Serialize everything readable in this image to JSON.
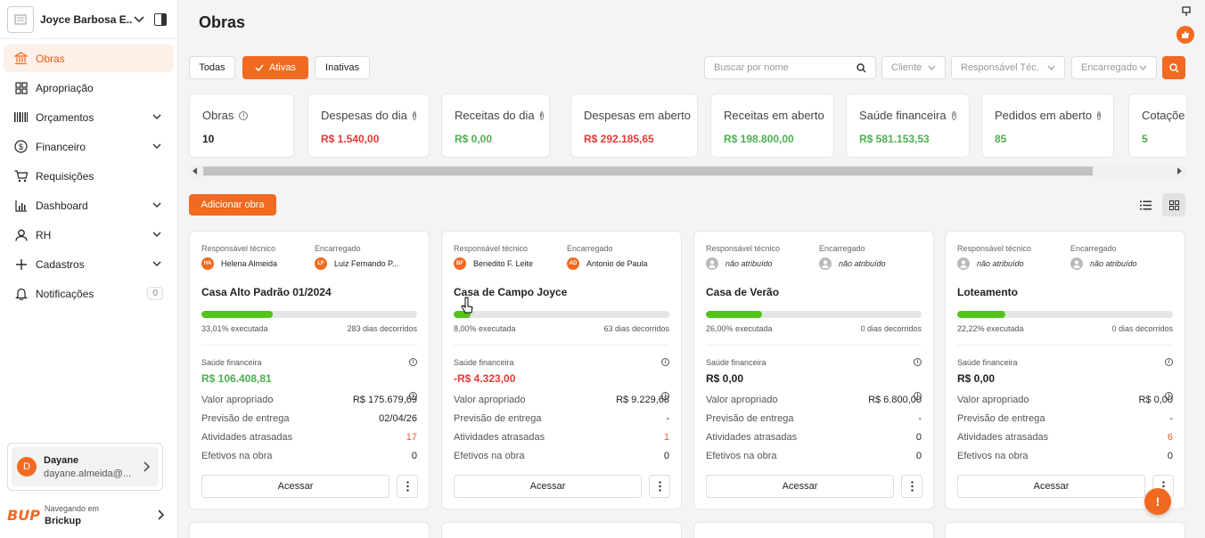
{
  "sidebar": {
    "company_name": "Joyce Barbosa E...",
    "items": [
      {
        "label": "Obras",
        "icon": "bank-icon",
        "active": true,
        "has_chevron": false
      },
      {
        "label": "Apropriação",
        "icon": "grid-icon",
        "active": false,
        "has_chevron": false
      },
      {
        "label": "Orçamentos",
        "icon": "barcode-icon",
        "active": false,
        "has_chevron": true
      },
      {
        "label": "Financeiro",
        "icon": "dollar-icon",
        "active": false,
        "has_chevron": true
      },
      {
        "label": "Requisições",
        "icon": "cart-icon",
        "active": false,
        "has_chevron": false
      },
      {
        "label": "Dashboard",
        "icon": "bar-chart-icon",
        "active": false,
        "has_chevron": true
      },
      {
        "label": "RH",
        "icon": "user-icon",
        "active": false,
        "has_chevron": true
      },
      {
        "label": "Cadastros",
        "icon": "plus-icon",
        "active": false,
        "has_chevron": true
      },
      {
        "label": "Notificações",
        "icon": "bell-icon",
        "active": false,
        "has_chevron": false,
        "badge": "0"
      }
    ],
    "user": {
      "initial": "D",
      "name": "Dayane",
      "email": "dayane.almeida@..."
    },
    "footer": {
      "logo_text": "BUP",
      "small": "Navegando em",
      "big": "Brickup"
    }
  },
  "header": {
    "title": "Obras"
  },
  "filters": {
    "segments": [
      "Todas",
      "Ativas",
      "Inativas"
    ],
    "active_segment": "Ativas",
    "search_placeholder": "Buscar por nome",
    "selects": [
      "Cliente",
      "Responsável Téc.",
      "Encarregado"
    ]
  },
  "stats": [
    {
      "label": "Obras",
      "value": "10",
      "tone": "dark",
      "info": true
    },
    {
      "label": "Despesas do dia",
      "value": "R$ 1.540,00",
      "tone": "red",
      "info": true
    },
    {
      "label": "Receitas do dia",
      "value": "R$ 0,00",
      "tone": "green",
      "info": true
    },
    {
      "label": "Despesas em aberto",
      "value": "R$ 292.185,65",
      "tone": "red",
      "info": false
    },
    {
      "label": "Receitas em aberto",
      "value": "R$ 198.800,00",
      "tone": "green",
      "info": false
    },
    {
      "label": "Saúde financeira",
      "value": "R$ 581.153,53",
      "tone": "green",
      "info": true
    },
    {
      "label": "Pedidos em aberto",
      "value": "85",
      "tone": "green",
      "info": true
    },
    {
      "label": "Cotações",
      "value": "5",
      "tone": "green",
      "info": false
    }
  ],
  "actions": {
    "add_label": "Adicionar obra"
  },
  "card_labels": {
    "resp": "Responsável técnico",
    "enc": "Encarregado",
    "saude": "Saúde financeira",
    "valor": "Valor apropriado",
    "previsao": "Previsão de entrega",
    "atividades": "Atividades atrasadas",
    "efetivos": "Efetivos na obra",
    "access": "Acessar"
  },
  "cards": [
    {
      "resp_initials": "HA",
      "resp_name": "Helena Almeida",
      "enc_initials": "LF",
      "enc_name": "Luiz Fernando P...",
      "title": "Casa Alto Padrão 01/2024",
      "progress": 0.3301,
      "executed": "33,01% executada",
      "days": "283 dias decorridos",
      "saude": "R$ 106.408,81",
      "saude_tone": "green",
      "valor": "R$ 175.679,69",
      "previsao": "02/04/26",
      "atividades": "17",
      "atividades_tone": "orange",
      "efetivos": "0"
    },
    {
      "resp_initials": "BF",
      "resp_name": "Benedito F. Leite",
      "enc_initials": "AD",
      "enc_name": "Antonio de Paula",
      "title": "Casa de Campo Joyce",
      "progress": 0.08,
      "executed": "8,00% executada",
      "days": "63 dias decorridos",
      "saude": "-R$ 4.323,00",
      "saude_tone": "red",
      "valor": "R$ 9.229,68",
      "previsao": "-",
      "atividades": "1",
      "atividades_tone": "orange",
      "efetivos": "0"
    },
    {
      "resp_initials": "",
      "resp_name": "não atribuído",
      "enc_initials": "",
      "enc_name": "não atribuído",
      "title": "Casa de Verão",
      "progress": 0.26,
      "executed": "26,00% executada",
      "days": "0 dias decorridos",
      "saude": "R$ 0,00",
      "saude_tone": "dark",
      "valor": "R$ 6.800,00",
      "previsao": "-",
      "atividades": "0",
      "atividades_tone": "dark",
      "efetivos": "0"
    },
    {
      "resp_initials": "",
      "resp_name": "não atribuído",
      "enc_initials": "",
      "enc_name": "não atribuído",
      "title": "Loteamento",
      "progress": 0.2222,
      "executed": "22,22% executada",
      "days": "0 dias decorridos",
      "saude": "R$ 0,00",
      "saude_tone": "dark",
      "valor": "R$ 0,00",
      "previsao": "-",
      "atividades": "6",
      "atividades_tone": "orange",
      "efetivos": "0"
    }
  ],
  "colors": {
    "accent": "#f26a21",
    "green": "#52c41a",
    "red": "#e53935"
  }
}
